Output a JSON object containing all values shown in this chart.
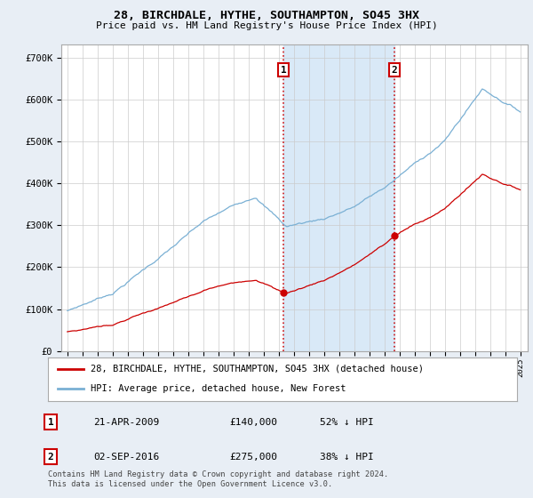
{
  "title": "28, BIRCHDALE, HYTHE, SOUTHAMPTON, SO45 3HX",
  "subtitle": "Price paid vs. HM Land Registry's House Price Index (HPI)",
  "ylim": [
    0,
    730000
  ],
  "sale1_date": 2009.31,
  "sale1_price": 140000,
  "sale2_date": 2016.67,
  "sale2_price": 275000,
  "hpi_color": "#7ab0d4",
  "price_color": "#cc0000",
  "shade_color": "#d0e4f5",
  "legend_line1": "28, BIRCHDALE, HYTHE, SOUTHAMPTON, SO45 3HX (detached house)",
  "legend_line2": "HPI: Average price, detached house, New Forest",
  "table_row1": [
    "1",
    "21-APR-2009",
    "£140,000",
    "52% ↓ HPI"
  ],
  "table_row2": [
    "2",
    "02-SEP-2016",
    "£275,000",
    "38% ↓ HPI"
  ],
  "footer": "Contains HM Land Registry data © Crown copyright and database right 2024.\nThis data is licensed under the Open Government Licence v3.0.",
  "bg_color": "#e8eef5",
  "plot_bg_color": "#ffffff"
}
